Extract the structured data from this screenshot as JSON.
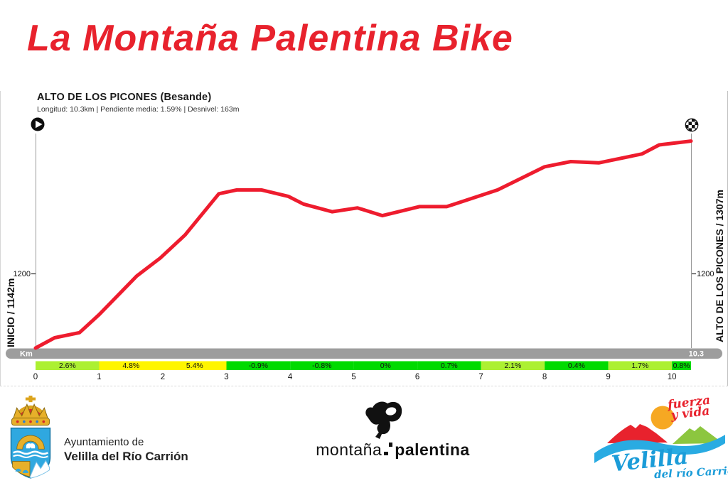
{
  "page": {
    "title": "La Montaña Palentina Bike",
    "title_color": "#e8222d"
  },
  "chart": {
    "header": "ALTO DE LOS PICONES  (Besande)",
    "subtitle": "Longitud: 10.3km | Pendiente media: 1.59% | Desnivel: 163m",
    "start_label": "INICIO / 1142m",
    "end_label": "ALTO DE LOS PICONES / 1307m",
    "y_tick_left": "1200",
    "y_tick_right": "1200",
    "km_bar_label": "Km",
    "km_bar_end": "10.3"
  },
  "chart_data": {
    "type": "line",
    "title": "ALTO DE LOS PICONES (Besande)",
    "xlabel": "Km",
    "ylabel": "m",
    "length_km": 10.3,
    "avg_gradient_pct": 1.59,
    "elevation_gain_m": 163,
    "start_elevation_m": 1142,
    "end_elevation_m": 1307,
    "xlim": [
      0,
      10.3
    ],
    "y_tick_m": 1200,
    "line_color": "#ee1c2e",
    "axis_color": "#9a9a9a",
    "bar_color": "#9d9d9d",
    "profile": [
      [
        0,
        1142
      ],
      [
        0.3,
        1150
      ],
      [
        0.69,
        1154
      ],
      [
        1.0,
        1168
      ],
      [
        1.59,
        1198
      ],
      [
        1.96,
        1212
      ],
      [
        2.35,
        1230
      ],
      [
        2.88,
        1262
      ],
      [
        3.16,
        1265
      ],
      [
        3.55,
        1265
      ],
      [
        3.97,
        1260
      ],
      [
        4.21,
        1254
      ],
      [
        4.66,
        1248
      ],
      [
        5.06,
        1251
      ],
      [
        5.45,
        1245
      ],
      [
        6.03,
        1252
      ],
      [
        6.46,
        1252
      ],
      [
        7.26,
        1265
      ],
      [
        8.0,
        1283
      ],
      [
        8.41,
        1287
      ],
      [
        8.85,
        1286
      ],
      [
        9.53,
        1293
      ],
      [
        9.8,
        1300
      ],
      [
        10.3,
        1303
      ]
    ],
    "km_ticks": [
      0,
      1,
      2,
      3,
      4,
      5,
      6,
      7,
      8,
      9,
      10
    ],
    "segments": [
      {
        "from": 0,
        "to": 1,
        "label": "2.6%",
        "color": "#acf032"
      },
      {
        "from": 1,
        "to": 2,
        "label": "4.8%",
        "color": "#fff500"
      },
      {
        "from": 2,
        "to": 3,
        "label": "5.4%",
        "color": "#fff500"
      },
      {
        "from": 3,
        "to": 4,
        "label": "-0.9%",
        "color": "#00da00"
      },
      {
        "from": 4,
        "to": 5,
        "label": "-0.8%",
        "color": "#00da00"
      },
      {
        "from": 5,
        "to": 6,
        "label": "0%",
        "color": "#00da00"
      },
      {
        "from": 6,
        "to": 7,
        "label": "0.7%",
        "color": "#00da00"
      },
      {
        "from": 7,
        "to": 8,
        "label": "2.1%",
        "color": "#acf032"
      },
      {
        "from": 8,
        "to": 9,
        "label": "0.4%",
        "color": "#00da00"
      },
      {
        "from": 9,
        "to": 10,
        "label": "1.7%",
        "color": "#acf032"
      },
      {
        "from": 10,
        "to": 10.3,
        "label": "0.8%",
        "color": "#00da00"
      }
    ]
  },
  "footer": {
    "ayuntamiento": {
      "line1": "Ayuntamiento de",
      "line2": "Velilla del Río Carrión"
    },
    "montana": {
      "word1": "montaña",
      "word2": "palentina"
    },
    "velilla": {
      "tagline1": "fuerza",
      "tagline2": "y vida",
      "name": "Velilla",
      "subname": "del río Carrión"
    }
  }
}
